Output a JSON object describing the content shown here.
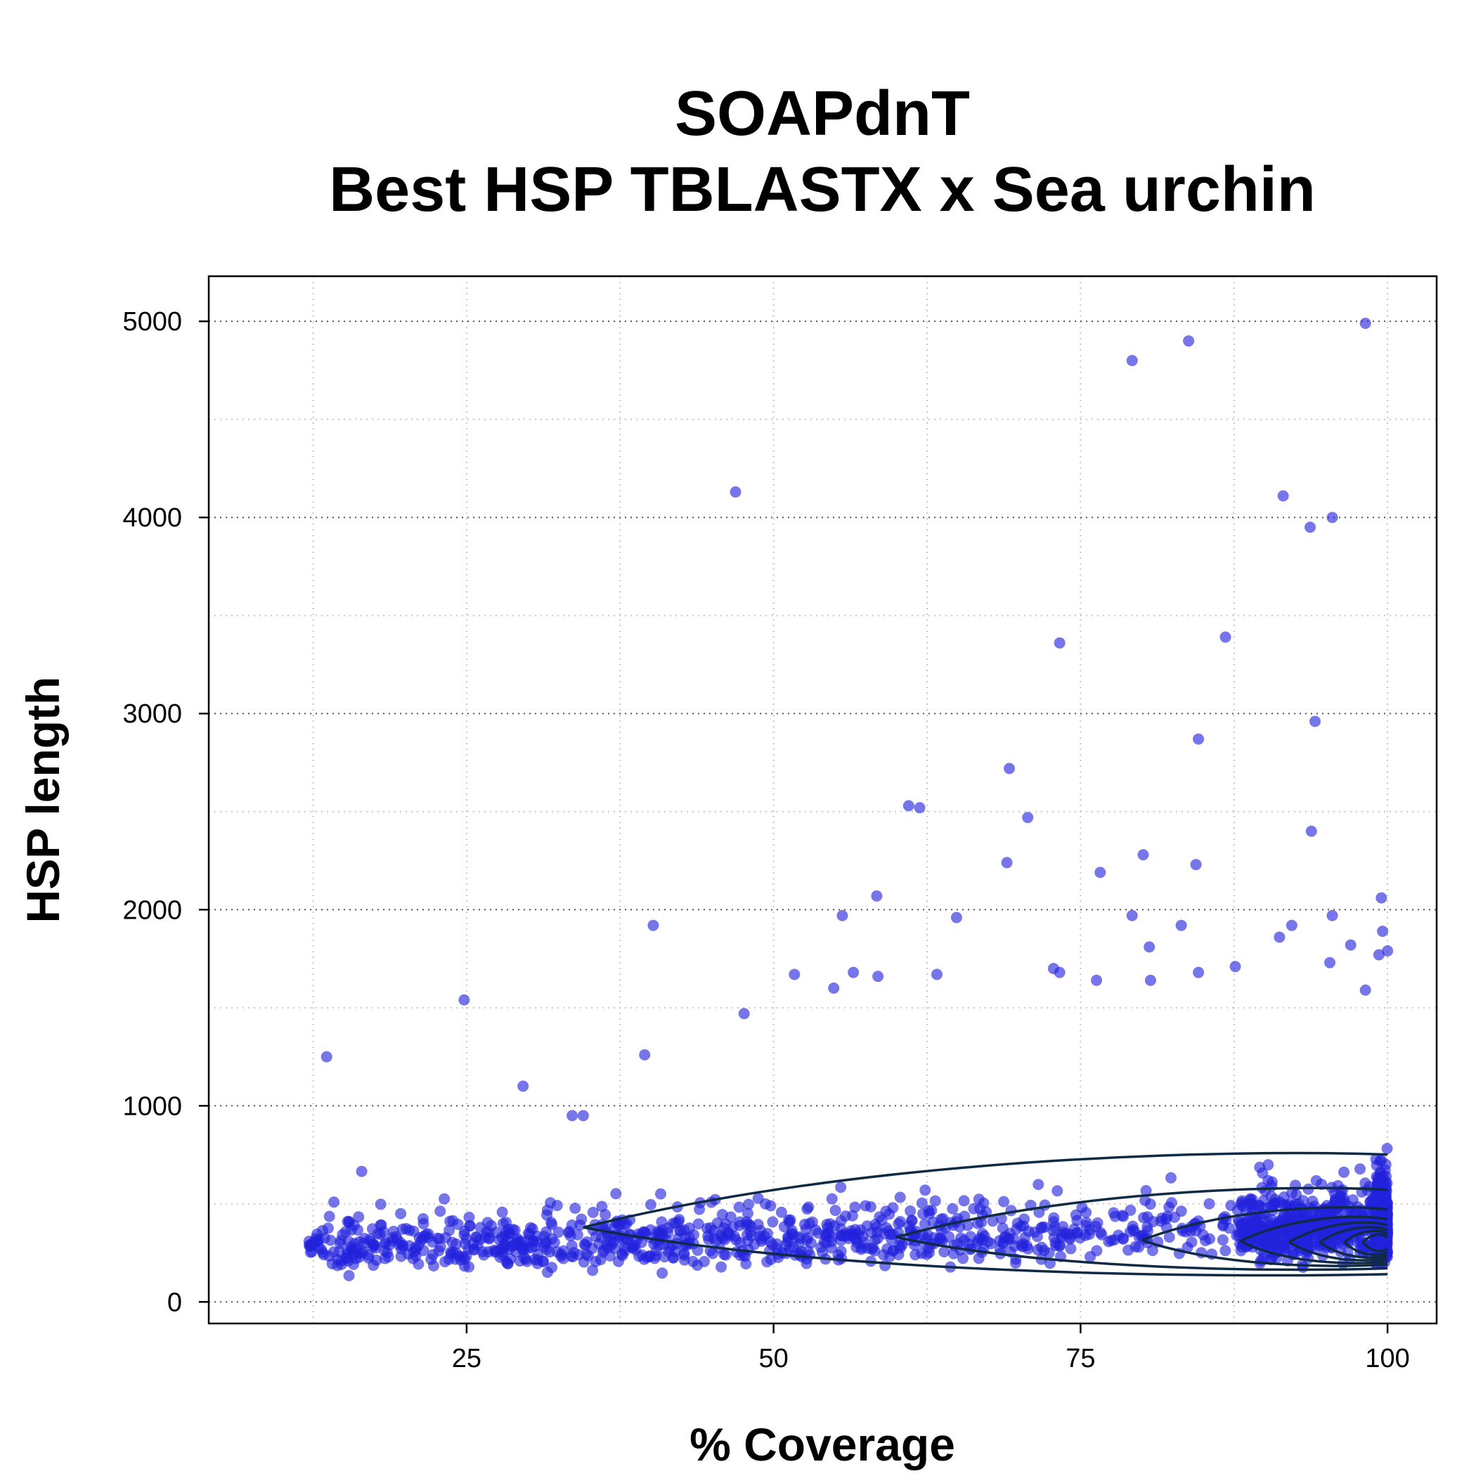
{
  "chart_data": {
    "type": "scatter",
    "title_lines": [
      "SOAPdnT",
      "Best HSP TBLASTX x Sea urchin"
    ],
    "xlabel": "% Coverage",
    "ylabel": "HSP length",
    "xlim": [
      4,
      104
    ],
    "ylim": [
      -110,
      5230
    ],
    "x_ticks": [
      25,
      50,
      75,
      100
    ],
    "x_tick_labels": [
      "25",
      "50",
      "75",
      "100"
    ],
    "y_ticks": [
      0,
      1000,
      2000,
      3000,
      4000,
      5000
    ],
    "y_tick_labels": [
      "0",
      "1000",
      "2000",
      "3000",
      "4000",
      "5000"
    ],
    "x_grid": [
      12.5,
      25,
      37.5,
      50,
      62.5,
      75,
      87.5,
      100
    ],
    "y_grid_minor": [
      500,
      1500,
      2500,
      3500,
      4500
    ],
    "grid": true,
    "point_color": "#2222dd",
    "contour_color": "#0f2a44",
    "outlier_points": [
      [
        98.2,
        4990
      ],
      [
        83.8,
        4900
      ],
      [
        79.2,
        4800
      ],
      [
        46.9,
        4130
      ],
      [
        91.5,
        4110
      ],
      [
        95.5,
        4000
      ],
      [
        93.7,
        3950
      ],
      [
        73.3,
        3360
      ],
      [
        86.8,
        3390
      ],
      [
        94.1,
        2960
      ],
      [
        84.6,
        2870
      ],
      [
        69.2,
        2720
      ],
      [
        61.0,
        2530
      ],
      [
        61.9,
        2520
      ],
      [
        70.7,
        2470
      ],
      [
        93.8,
        2400
      ],
      [
        69.0,
        2240
      ],
      [
        80.1,
        2280
      ],
      [
        84.4,
        2230
      ],
      [
        76.6,
        2190
      ],
      [
        58.4,
        2070
      ],
      [
        99.5,
        2060
      ],
      [
        40.2,
        1920
      ],
      [
        55.6,
        1970
      ],
      [
        64.9,
        1960
      ],
      [
        79.2,
        1970
      ],
      [
        83.2,
        1920
      ],
      [
        92.2,
        1920
      ],
      [
        95.5,
        1970
      ],
      [
        99.6,
        1890
      ],
      [
        91.2,
        1860
      ],
      [
        97.0,
        1820
      ],
      [
        100,
        1790
      ],
      [
        99.3,
        1770
      ],
      [
        80.6,
        1810
      ],
      [
        24.8,
        1540
      ],
      [
        51.7,
        1670
      ],
      [
        56.5,
        1680
      ],
      [
        58.5,
        1660
      ],
      [
        63.3,
        1670
      ],
      [
        72.8,
        1700
      ],
      [
        73.3,
        1680
      ],
      [
        76.3,
        1640
      ],
      [
        80.7,
        1640
      ],
      [
        84.6,
        1680
      ],
      [
        87.6,
        1710
      ],
      [
        95.3,
        1730
      ],
      [
        98.2,
        1590
      ],
      [
        54.9,
        1600
      ],
      [
        13.6,
        1250
      ],
      [
        39.5,
        1260
      ],
      [
        47.6,
        1470
      ],
      [
        29.6,
        1100
      ],
      [
        33.6,
        950
      ],
      [
        34.5,
        950
      ]
    ],
    "bulk_points": {
      "count": 1900,
      "x_range": [
        9,
        100
      ],
      "y_range": [
        130,
        1500
      ],
      "dense_x": 95,
      "dense_y": 350
    },
    "contour_levels": 8
  }
}
